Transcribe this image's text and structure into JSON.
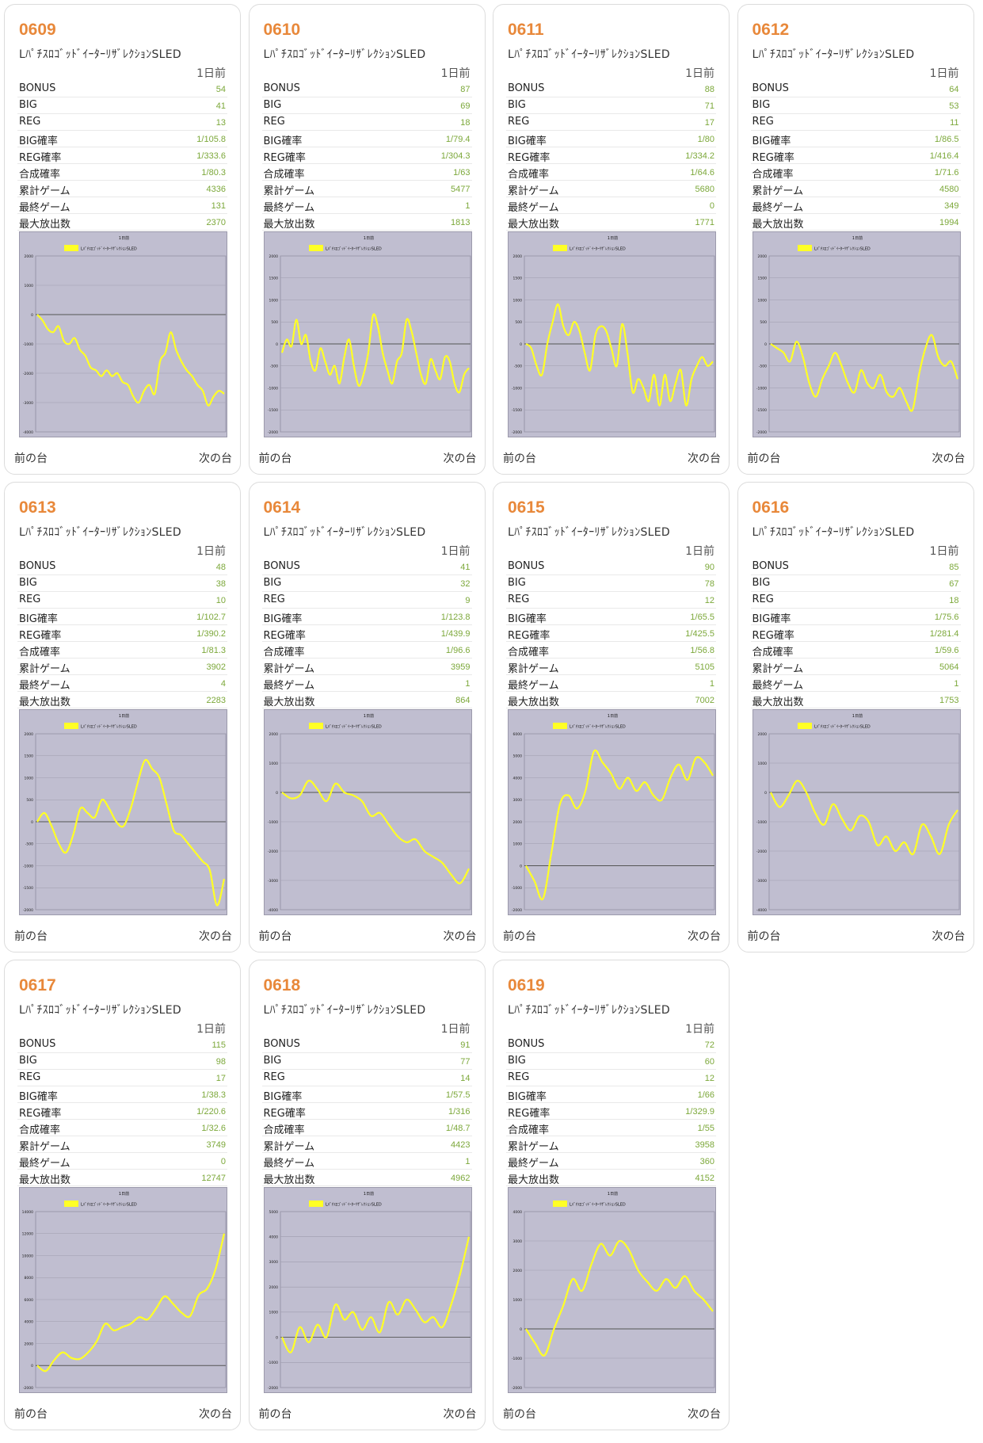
{
  "labels": {
    "bonus": "BONUS",
    "big": "BIG",
    "reg": "REG",
    "big_rate": "BIG確率",
    "reg_rate": "REG確率",
    "total_rate": "合成確率",
    "total_games": "累計ゲーム",
    "last_game": "最終ゲーム",
    "max_payout": "最大放出数",
    "prev": "前の台",
    "next": "次の台"
  },
  "colors": {
    "accent": "#e8883a",
    "value": "#7ca83a",
    "line": "#ffff26",
    "chart_bg": "#c0bed0"
  },
  "machines": [
    {
      "id": "0609",
      "model": "LﾊﾟﾁｽﾛｺﾞｯﾄﾞｲｰﾀｰﾘｻﾞﾚｸｼｮﾝSLED",
      "day": "1日前",
      "stats": {
        "bonus": "54",
        "big": "41",
        "reg": "13",
        "big_rate": "1/105.8",
        "reg_rate": "1/333.6",
        "total_rate": "1/80.3",
        "total_games": "4336",
        "last_game": "131",
        "max_payout": "2370"
      }
    },
    {
      "id": "0610",
      "model": "LﾊﾟﾁｽﾛｺﾞｯﾄﾞｲｰﾀｰﾘｻﾞﾚｸｼｮﾝSLED",
      "day": "1日前",
      "stats": {
        "bonus": "87",
        "big": "69",
        "reg": "18",
        "big_rate": "1/79.4",
        "reg_rate": "1/304.3",
        "total_rate": "1/63",
        "total_games": "5477",
        "last_game": "1",
        "max_payout": "1813"
      }
    },
    {
      "id": "0611",
      "model": "LﾊﾟﾁｽﾛｺﾞｯﾄﾞｲｰﾀｰﾘｻﾞﾚｸｼｮﾝSLED",
      "day": "1日前",
      "stats": {
        "bonus": "88",
        "big": "71",
        "reg": "17",
        "big_rate": "1/80",
        "reg_rate": "1/334.2",
        "total_rate": "1/64.6",
        "total_games": "5680",
        "last_game": "0",
        "max_payout": "1771"
      }
    },
    {
      "id": "0612",
      "model": "LﾊﾟﾁｽﾛｺﾞｯﾄﾞｲｰﾀｰﾘｻﾞﾚｸｼｮﾝSLED",
      "day": "1日前",
      "stats": {
        "bonus": "64",
        "big": "53",
        "reg": "11",
        "big_rate": "1/86.5",
        "reg_rate": "1/416.4",
        "total_rate": "1/71.6",
        "total_games": "4580",
        "last_game": "349",
        "max_payout": "1994"
      }
    },
    {
      "id": "0613",
      "model": "LﾊﾟﾁｽﾛｺﾞｯﾄﾞｲｰﾀｰﾘｻﾞﾚｸｼｮﾝSLED",
      "day": "1日前",
      "stats": {
        "bonus": "48",
        "big": "38",
        "reg": "10",
        "big_rate": "1/102.7",
        "reg_rate": "1/390.2",
        "total_rate": "1/81.3",
        "total_games": "3902",
        "last_game": "4",
        "max_payout": "2283"
      }
    },
    {
      "id": "0614",
      "model": "LﾊﾟﾁｽﾛｺﾞｯﾄﾞｲｰﾀｰﾘｻﾞﾚｸｼｮﾝSLED",
      "day": "1日前",
      "stats": {
        "bonus": "41",
        "big": "32",
        "reg": "9",
        "big_rate": "1/123.8",
        "reg_rate": "1/439.9",
        "total_rate": "1/96.6",
        "total_games": "3959",
        "last_game": "1",
        "max_payout": "864"
      }
    },
    {
      "id": "0615",
      "model": "LﾊﾟﾁｽﾛｺﾞｯﾄﾞｲｰﾀｰﾘｻﾞﾚｸｼｮﾝSLED",
      "day": "1日前",
      "stats": {
        "bonus": "90",
        "big": "78",
        "reg": "12",
        "big_rate": "1/65.5",
        "reg_rate": "1/425.5",
        "total_rate": "1/56.8",
        "total_games": "5105",
        "last_game": "1",
        "max_payout": "7002"
      }
    },
    {
      "id": "0616",
      "model": "LﾊﾟﾁｽﾛｺﾞｯﾄﾞｲｰﾀｰﾘｻﾞﾚｸｼｮﾝSLED",
      "day": "1日前",
      "stats": {
        "bonus": "85",
        "big": "67",
        "reg": "18",
        "big_rate": "1/75.6",
        "reg_rate": "1/281.4",
        "total_rate": "1/59.6",
        "total_games": "5064",
        "last_game": "1",
        "max_payout": "1753"
      }
    },
    {
      "id": "0617",
      "model": "LﾊﾟﾁｽﾛｺﾞｯﾄﾞｲｰﾀｰﾘｻﾞﾚｸｼｮﾝSLED",
      "day": "1日前",
      "stats": {
        "bonus": "115",
        "big": "98",
        "reg": "17",
        "big_rate": "1/38.3",
        "reg_rate": "1/220.6",
        "total_rate": "1/32.6",
        "total_games": "3749",
        "last_game": "0",
        "max_payout": "12747"
      }
    },
    {
      "id": "0618",
      "model": "LﾊﾟﾁｽﾛｺﾞｯﾄﾞｲｰﾀｰﾘｻﾞﾚｸｼｮﾝSLED",
      "day": "1日前",
      "stats": {
        "bonus": "91",
        "big": "77",
        "reg": "14",
        "big_rate": "1/57.5",
        "reg_rate": "1/316",
        "total_rate": "1/48.7",
        "total_games": "4423",
        "last_game": "1",
        "max_payout": "4962"
      }
    },
    {
      "id": "0619",
      "model": "LﾊﾟﾁｽﾛｺﾞｯﾄﾞｲｰﾀｰﾘｻﾞﾚｸｼｮﾝSLED",
      "day": "1日前",
      "stats": {
        "bonus": "72",
        "big": "60",
        "reg": "12",
        "big_rate": "1/66",
        "reg_rate": "1/329.9",
        "total_rate": "1/55",
        "total_games": "3958",
        "last_game": "360",
        "max_payout": "4152"
      }
    }
  ],
  "chart_data": [
    {
      "type": "line",
      "title": "1日前",
      "series": [
        {
          "name": "LﾊﾟﾁｽﾛｺﾞｯﾄﾞｲｰﾀｰﾘｻﾞﾚｸｼｮﾝSLED"
        }
      ],
      "ylim": [
        -4000,
        2000
      ],
      "yticks": [
        "2000",
        "1000",
        "0",
        "-1000",
        "-2000",
        "-3000",
        "-4000"
      ],
      "y": [
        0,
        -200,
        -500,
        -600,
        -400,
        -900,
        -1000,
        -800,
        -1200,
        -1400,
        -1800,
        -1900,
        -2100,
        -1900,
        -2100,
        -2000,
        -2300,
        -2400,
        -2800,
        -3000,
        -2600,
        -2400,
        -2700,
        -1600,
        -1300,
        -600,
        -1200,
        -1600,
        -1900,
        -2100,
        -2400,
        -2600,
        -3100,
        -2800,
        -2600,
        -2700
      ],
      "grid": true,
      "legend": "top"
    },
    {
      "type": "line",
      "title": "1日前",
      "series": [
        {
          "name": "LﾊﾟﾁｽﾛｺﾞｯﾄﾞｲｰﾀｰﾘｻﾞﾚｸｼｮﾝSLED"
        }
      ],
      "ylim": [
        -2000,
        2000
      ],
      "yticks": [
        "2000",
        "1500",
        "1000",
        "500",
        "0",
        "-500",
        "-1000",
        "-1500",
        "-2000"
      ],
      "y": [
        -200,
        100,
        -50,
        550,
        0,
        200,
        -400,
        -600,
        -100,
        -400,
        -700,
        -500,
        -900,
        -300,
        100,
        -500,
        -950,
        -700,
        -200,
        650,
        400,
        -200,
        -600,
        -900,
        -400,
        -200,
        550,
        300,
        -200,
        -700,
        -900,
        -350,
        -600,
        -800,
        -300,
        -400,
        -900,
        -1100,
        -700,
        -550
      ],
      "grid": true,
      "legend": "top"
    },
    {
      "type": "line",
      "title": "1日前",
      "series": [
        {
          "name": "LﾊﾟﾁｽﾛｺﾞｯﾄﾞｲｰﾀｰﾘｻﾞﾚｸｼｮﾝSLED"
        }
      ],
      "ylim": [
        -2000,
        2000
      ],
      "yticks": [
        "2000",
        "1500",
        "1000",
        "500",
        "0",
        "-500",
        "-1000",
        "-1500",
        "-2000"
      ],
      "y": [
        0,
        -100,
        -500,
        -700,
        0,
        500,
        900,
        400,
        200,
        500,
        300,
        -200,
        -600,
        200,
        400,
        300,
        -100,
        -500,
        450,
        -200,
        -1100,
        -800,
        -1000,
        -1300,
        -700,
        -1400,
        -700,
        -1300,
        -900,
        -600,
        -1400,
        -800,
        -500,
        -300,
        -500,
        -400
      ],
      "grid": true,
      "legend": "top"
    },
    {
      "type": "line",
      "title": "1日前",
      "series": [
        {
          "name": "LﾊﾟﾁｽﾛｺﾞｯﾄﾞｲｰﾀｰﾘｻﾞﾚｸｼｮﾝSLED"
        }
      ],
      "ylim": [
        -2000,
        2000
      ],
      "yticks": [
        "2000",
        "1500",
        "1000",
        "500",
        "0",
        "-500",
        "-1000",
        "-1500",
        "-2000"
      ],
      "y": [
        0,
        -100,
        -200,
        -400,
        50,
        -300,
        -900,
        -1200,
        -800,
        -500,
        -200,
        -500,
        -900,
        -1100,
        -600,
        -900,
        -1000,
        -700,
        -1100,
        -1200,
        -1000,
        -1300,
        -1500,
        -700,
        -100,
        200,
        -300,
        -500,
        -400,
        -800
      ],
      "grid": true,
      "legend": "top"
    },
    {
      "type": "line",
      "title": "1日前",
      "series": [
        {
          "name": "LﾊﾟﾁｽﾛｺﾞｯﾄﾞｲｰﾀｰﾘｻﾞﾚｸｼｮﾝSLED"
        }
      ],
      "ylim": [
        -2000,
        2000
      ],
      "yticks": [
        "2000",
        "1500",
        "1000",
        "500",
        "0",
        "-500",
        "-1000",
        "-1500",
        "-2000"
      ],
      "y": [
        0,
        200,
        -100,
        -500,
        -700,
        -300,
        300,
        200,
        100,
        500,
        300,
        0,
        -100,
        300,
        900,
        1400,
        1200,
        1000,
        400,
        -200,
        -300,
        -500,
        -700,
        -900,
        -1100,
        -1900,
        -1300
      ],
      "grid": true,
      "legend": "top"
    },
    {
      "type": "line",
      "title": "1日前",
      "series": [
        {
          "name": "LﾊﾟﾁｽﾛｺﾞｯﾄﾞｲｰﾀｰﾘｻﾞﾚｸｼｮﾝSLED"
        }
      ],
      "ylim": [
        -4000,
        2000
      ],
      "yticks": [
        "2000",
        "1000",
        "0",
        "-1000",
        "-2000",
        "-3000",
        "-4000"
      ],
      "y": [
        0,
        -200,
        -100,
        400,
        100,
        -300,
        300,
        0,
        -100,
        -300,
        -800,
        -700,
        -1100,
        -1500,
        -1700,
        -1600,
        -2000,
        -2200,
        -2400,
        -2800,
        -3100,
        -2600
      ],
      "grid": true,
      "legend": "top"
    },
    {
      "type": "line",
      "title": "1日前",
      "series": [
        {
          "name": "LﾊﾟﾁｽﾛｺﾞｯﾄﾞｲｰﾀｰﾘｻﾞﾚｸｼｮﾝSLED"
        }
      ],
      "ylim": [
        -2000,
        6000
      ],
      "yticks": [
        "6000",
        "5000",
        "4000",
        "3000",
        "2000",
        "1000",
        "0",
        "-1000",
        "-2000"
      ],
      "y": [
        0,
        -700,
        -1500,
        600,
        2800,
        3200,
        2600,
        3400,
        5200,
        4700,
        4200,
        3500,
        4000,
        3400,
        3800,
        3200,
        3000,
        4000,
        4600,
        3900,
        4900,
        4700,
        4100
      ],
      "grid": true,
      "legend": "top"
    },
    {
      "type": "line",
      "title": "1日前",
      "series": [
        {
          "name": "LﾊﾟﾁｽﾛｺﾞｯﾄﾞｲｰﾀｰﾘｻﾞﾚｸｼｮﾝSLED"
        }
      ],
      "ylim": [
        -4000,
        2000
      ],
      "yticks": [
        "2000",
        "1000",
        "0",
        "-1000",
        "-2000",
        "-3000",
        "-4000"
      ],
      "y": [
        0,
        -500,
        -100,
        400,
        0,
        -700,
        -1100,
        -400,
        -900,
        -1300,
        -800,
        -1000,
        -1800,
        -1500,
        -2000,
        -1700,
        -2100,
        -1100,
        -1500,
        -2100,
        -1100,
        -600
      ],
      "grid": true,
      "legend": "top"
    },
    {
      "type": "line",
      "title": "1日前",
      "series": [
        {
          "name": "LﾊﾟﾁｽﾛｺﾞｯﾄﾞｲｰﾀｰﾘｻﾞﾚｸｼｮﾝSLED"
        }
      ],
      "ylim": [
        -2000,
        14000
      ],
      "yticks": [
        "14000",
        "12000",
        "10000",
        "8000",
        "6000",
        "4000",
        "2000",
        "0",
        "-2000"
      ],
      "y": [
        0,
        -500,
        500,
        1200,
        700,
        600,
        1200,
        2200,
        3800,
        3200,
        3500,
        3800,
        4400,
        4200,
        5200,
        6300,
        5600,
        4800,
        4500,
        6400,
        7000,
        8800,
        12000
      ],
      "grid": true,
      "legend": "top"
    },
    {
      "type": "line",
      "title": "1日前",
      "series": [
        {
          "name": "LﾊﾟﾁｽﾛｺﾞｯﾄﾞｲｰﾀｰﾘｻﾞﾚｸｼｮﾝSLED"
        }
      ],
      "ylim": [
        -2000,
        5000
      ],
      "yticks": [
        "5000",
        "4000",
        "3000",
        "2000",
        "1000",
        "0",
        "-1000",
        "-2000"
      ],
      "y": [
        0,
        -600,
        400,
        -200,
        500,
        0,
        1300,
        700,
        1000,
        300,
        800,
        200,
        1400,
        900,
        1500,
        1100,
        600,
        800,
        400,
        1300,
        2500,
        4000
      ],
      "grid": true,
      "legend": "top"
    },
    {
      "type": "line",
      "title": "1日前",
      "series": [
        {
          "name": "LﾊﾟﾁｽﾛｺﾞｯﾄﾞｲｰﾀｰﾘｻﾞﾚｸｼｮﾝSLED"
        }
      ],
      "ylim": [
        -2000,
        4000
      ],
      "yticks": [
        "4000",
        "3000",
        "2000",
        "1000",
        "0",
        "-1000",
        "-2000"
      ],
      "y": [
        0,
        -500,
        -900,
        0,
        800,
        1700,
        1300,
        2200,
        2900,
        2500,
        3000,
        2700,
        2000,
        1600,
        1300,
        1700,
        1400,
        1800,
        1300,
        1000,
        600
      ],
      "grid": true,
      "legend": "top"
    }
  ]
}
